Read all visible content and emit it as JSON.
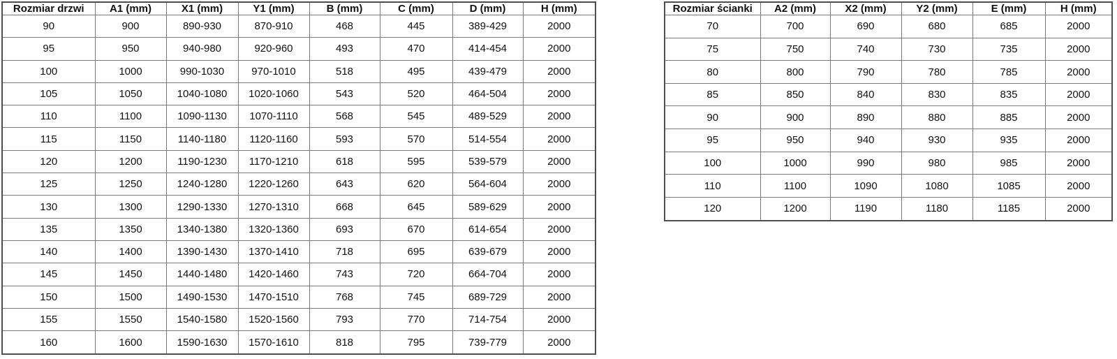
{
  "colors": {
    "border_inner": "#7a7a7a",
    "border_outer": "#4f4f4f",
    "text": "#111111",
    "background": "#ffffff"
  },
  "door_table": {
    "headers": [
      "Rozmiar drzwi",
      "A1 (mm)",
      "X1 (mm)",
      "Y1 (mm)",
      "B (mm)",
      "C (mm)",
      "D (mm)",
      "H (mm)"
    ],
    "rows": [
      [
        "90",
        "900",
        "890-930",
        "870-910",
        "468",
        "445",
        "389-429",
        "2000"
      ],
      [
        "95",
        "950",
        "940-980",
        "920-960",
        "493",
        "470",
        "414-454",
        "2000"
      ],
      [
        "100",
        "1000",
        "990-1030",
        "970-1010",
        "518",
        "495",
        "439-479",
        "2000"
      ],
      [
        "105",
        "1050",
        "1040-1080",
        "1020-1060",
        "543",
        "520",
        "464-504",
        "2000"
      ],
      [
        "110",
        "1100",
        "1090-1130",
        "1070-1110",
        "568",
        "545",
        "489-529",
        "2000"
      ],
      [
        "115",
        "1150",
        "1140-1180",
        "1120-1160",
        "593",
        "570",
        "514-554",
        "2000"
      ],
      [
        "120",
        "1200",
        "1190-1230",
        "1170-1210",
        "618",
        "595",
        "539-579",
        "2000"
      ],
      [
        "125",
        "1250",
        "1240-1280",
        "1220-1260",
        "643",
        "620",
        "564-604",
        "2000"
      ],
      [
        "130",
        "1300",
        "1290-1330",
        "1270-1310",
        "668",
        "645",
        "589-629",
        "2000"
      ],
      [
        "135",
        "1350",
        "1340-1380",
        "1320-1360",
        "693",
        "670",
        "614-654",
        "2000"
      ],
      [
        "140",
        "1400",
        "1390-1430",
        "1370-1410",
        "718",
        "695",
        "639-679",
        "2000"
      ],
      [
        "145",
        "1450",
        "1440-1480",
        "1420-1460",
        "743",
        "720",
        "664-704",
        "2000"
      ],
      [
        "150",
        "1500",
        "1490-1530",
        "1470-1510",
        "768",
        "745",
        "689-729",
        "2000"
      ],
      [
        "155",
        "1550",
        "1540-1580",
        "1520-1560",
        "793",
        "770",
        "714-754",
        "2000"
      ],
      [
        "160",
        "1600",
        "1590-1630",
        "1570-1610",
        "818",
        "795",
        "739-779",
        "2000"
      ]
    ]
  },
  "wall_table": {
    "headers": [
      "Rozmiar ścianki",
      "A2 (mm)",
      "X2 (mm)",
      "Y2 (mm)",
      "E (mm)",
      "H (mm)"
    ],
    "rows": [
      [
        "70",
        "700",
        "690",
        "680",
        "685",
        "2000"
      ],
      [
        "75",
        "750",
        "740",
        "730",
        "735",
        "2000"
      ],
      [
        "80",
        "800",
        "790",
        "780",
        "785",
        "2000"
      ],
      [
        "85",
        "850",
        "840",
        "830",
        "835",
        "2000"
      ],
      [
        "90",
        "900",
        "890",
        "880",
        "885",
        "2000"
      ],
      [
        "95",
        "950",
        "940",
        "930",
        "935",
        "2000"
      ],
      [
        "100",
        "1000",
        "990",
        "980",
        "985",
        "2000"
      ],
      [
        "110",
        "1100",
        "1090",
        "1080",
        "1085",
        "2000"
      ],
      [
        "120",
        "1200",
        "1190",
        "1180",
        "1185",
        "2000"
      ]
    ]
  }
}
